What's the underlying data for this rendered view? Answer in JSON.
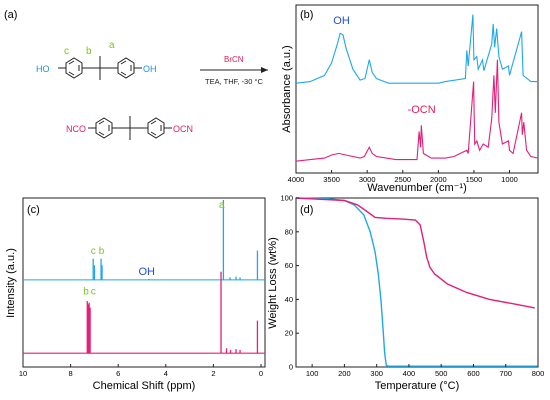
{
  "panels": {
    "a": {
      "label": "(a)",
      "site_labels": {
        "c": "c",
        "b": "b",
        "a": "a"
      },
      "ho_left": "HO",
      "oh_right": "OH",
      "reagent": "BrCN",
      "conditions": "TEA, THF, -30 °C",
      "nco_left": "NCO",
      "ocn_right": "OCN",
      "colors": {
        "reactant": "#1e90d8",
        "product": "#e0205a",
        "labels": "#7cc520",
        "reagent": "#e0205a"
      }
    }
  },
  "chart_data": [
    {
      "panel": "(b)",
      "type": "line",
      "xlabel": "Wavenumber (cm⁻¹)",
      "ylabel": "Absorbance (a.u.)",
      "xlim": [
        4000,
        600
      ],
      "xticks": [
        4000,
        3500,
        3000,
        2500,
        2000,
        1500,
        1000
      ],
      "annotations": [
        {
          "text": "OH",
          "color": "#1e4fd8"
        },
        {
          "text": "-OCN",
          "color": "#e0205a"
        }
      ],
      "series": [
        {
          "color": "#1ea8e8",
          "baseline": 0.54,
          "points": [
            [
              4000,
              0.55
            ],
            [
              3800,
              0.56
            ],
            [
              3600,
              0.6
            ],
            [
              3500,
              0.68
            ],
            [
              3420,
              0.8
            ],
            [
              3380,
              0.87
            ],
            [
              3340,
              0.86
            ],
            [
              3300,
              0.78
            ],
            [
              3200,
              0.64
            ],
            [
              3100,
              0.57
            ],
            [
              3030,
              0.58
            ],
            [
              2970,
              0.7
            ],
            [
              2930,
              0.62
            ],
            [
              2870,
              0.58
            ],
            [
              2700,
              0.55
            ],
            [
              2000,
              0.55
            ],
            [
              1900,
              0.56
            ],
            [
              1620,
              0.58
            ],
            [
              1600,
              0.76
            ],
            [
              1580,
              0.66
            ],
            [
              1515,
              0.99
            ],
            [
              1500,
              0.7
            ],
            [
              1460,
              0.72
            ],
            [
              1440,
              0.64
            ],
            [
              1380,
              0.7
            ],
            [
              1360,
              0.63
            ],
            [
              1250,
              0.8
            ],
            [
              1230,
              0.93
            ],
            [
              1210,
              0.78
            ],
            [
              1180,
              0.9
            ],
            [
              1150,
              0.72
            ],
            [
              1100,
              0.64
            ],
            [
              1015,
              0.66
            ],
            [
              1000,
              0.6
            ],
            [
              830,
              0.88
            ],
            [
              810,
              0.6
            ],
            [
              700,
              0.56
            ],
            [
              600,
              0.56
            ]
          ]
        },
        {
          "color": "#e0207a",
          "baseline": 0.04,
          "points": [
            [
              4000,
              0.05
            ],
            [
              3800,
              0.06
            ],
            [
              3600,
              0.07
            ],
            [
              3500,
              0.09
            ],
            [
              3400,
              0.1
            ],
            [
              3300,
              0.09
            ],
            [
              3100,
              0.07
            ],
            [
              3040,
              0.08
            ],
            [
              2970,
              0.14
            ],
            [
              2930,
              0.1
            ],
            [
              2870,
              0.08
            ],
            [
              2600,
              0.06
            ],
            [
              2300,
              0.06
            ],
            [
              2270,
              0.24
            ],
            [
              2250,
              0.14
            ],
            [
              2240,
              0.28
            ],
            [
              2210,
              0.1
            ],
            [
              2100,
              0.07
            ],
            [
              1900,
              0.07
            ],
            [
              1780,
              0.08
            ],
            [
              1600,
              0.12
            ],
            [
              1580,
              0.1
            ],
            [
              1505,
              0.56
            ],
            [
              1490,
              0.16
            ],
            [
              1460,
              0.18
            ],
            [
              1420,
              0.12
            ],
            [
              1370,
              0.16
            ],
            [
              1300,
              0.14
            ],
            [
              1250,
              0.32
            ],
            [
              1220,
              0.6
            ],
            [
              1200,
              0.36
            ],
            [
              1170,
              0.7
            ],
            [
              1150,
              0.3
            ],
            [
              1100,
              0.16
            ],
            [
              1015,
              0.18
            ],
            [
              1000,
              0.12
            ],
            [
              950,
              0.1
            ],
            [
              830,
              0.36
            ],
            [
              820,
              0.22
            ],
            [
              800,
              0.3
            ],
            [
              760,
              0.12
            ],
            [
              700,
              0.08
            ],
            [
              600,
              0.07
            ]
          ]
        }
      ]
    },
    {
      "panel": "(c)",
      "type": "line",
      "xlabel": "Chemical Shift (ppm)",
      "ylabel": "Intensity (a.u.)",
      "xlim": [
        10,
        0
      ],
      "xticks": [
        10,
        8,
        6,
        4,
        2,
        0
      ],
      "annotations": [
        {
          "text": "c",
          "color": "#7cc520"
        },
        {
          "text": "b",
          "color": "#7cc520"
        },
        {
          "text": "OH",
          "color": "#1e4fd8"
        },
        {
          "text": "a",
          "color": "#7cc520"
        },
        {
          "text": "b",
          "color": "#7cc520"
        },
        {
          "text": "c",
          "color": "#7cc520"
        }
      ],
      "series": [
        {
          "color": "#1ea8e8",
          "baseline": 0.51,
          "peaks": [
            [
              7.05,
              0.64
            ],
            [
              7.0,
              0.6
            ],
            [
              6.72,
              0.64
            ],
            [
              6.68,
              0.6
            ],
            [
              4.7,
              0.515
            ],
            [
              1.58,
              1.0
            ],
            [
              1.3,
              0.525
            ],
            [
              1.05,
              0.53
            ],
            [
              0.88,
              0.525
            ],
            [
              0.15,
              0.69
            ]
          ]
        },
        {
          "color": "#e0207a",
          "baseline": 0.06,
          "peaks": [
            [
              7.3,
              0.38
            ],
            [
              7.26,
              0.36
            ],
            [
              7.22,
              0.37
            ],
            [
              7.18,
              0.34
            ],
            [
              1.68,
              0.56
            ],
            [
              1.45,
              0.09
            ],
            [
              1.28,
              0.08
            ],
            [
              1.05,
              0.085
            ],
            [
              0.88,
              0.08
            ],
            [
              0.15,
              0.26
            ]
          ]
        }
      ]
    },
    {
      "panel": "(d)",
      "type": "line",
      "xlabel": "Temperature (°C)",
      "ylabel": "Weight Loss (wt%)",
      "xlim": [
        50,
        800
      ],
      "ylim": [
        0,
        100
      ],
      "xticks": [
        100,
        200,
        300,
        400,
        500,
        600,
        700,
        800
      ],
      "yticks": [
        0,
        20,
        40,
        60,
        80,
        100
      ],
      "series": [
        {
          "color": "#1ea8e8",
          "points": [
            [
              50,
              100
            ],
            [
              150,
              99.5
            ],
            [
              200,
              98.5
            ],
            [
              230,
              96
            ],
            [
              260,
              90
            ],
            [
              280,
              80
            ],
            [
              295,
              68
            ],
            [
              305,
              55
            ],
            [
              313,
              40
            ],
            [
              320,
              22
            ],
            [
              325,
              8
            ],
            [
              330,
              1
            ],
            [
              335,
              0.5
            ],
            [
              800,
              0.5
            ]
          ]
        },
        {
          "color": "#e0207a",
          "points": [
            [
              50,
              100
            ],
            [
              150,
              99
            ],
            [
              200,
              98.5
            ],
            [
              240,
              96
            ],
            [
              270,
              92
            ],
            [
              295,
              88.5
            ],
            [
              330,
              88
            ],
            [
              380,
              87.5
            ],
            [
              420,
              87
            ],
            [
              435,
              84
            ],
            [
              445,
              75
            ],
            [
              455,
              65
            ],
            [
              465,
              59
            ],
            [
              480,
              55
            ],
            [
              520,
              49
            ],
            [
              580,
              44
            ],
            [
              650,
              40
            ],
            [
              720,
              37.5
            ],
            [
              790,
              35
            ]
          ]
        }
      ]
    }
  ]
}
